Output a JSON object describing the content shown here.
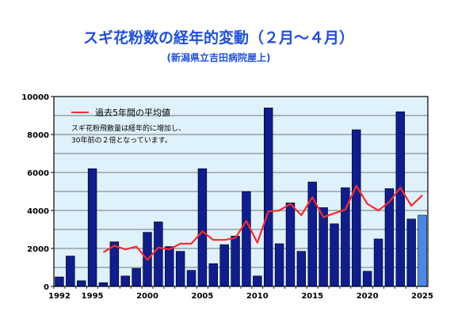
{
  "title": "スギ花粉数の経年的変動（２月～４月）",
  "subtitle": "(新潟県立吉田病院屋上)",
  "legend": {
    "line_label": "過去5年間の平均値"
  },
  "note_lines": [
    "スギ花粉飛散量は経年的に増加し、",
    "30年前の２倍となっています。"
  ],
  "colors": {
    "plot_bg": "#dff1fb",
    "bar": "#0f1d8f",
    "bar_latest": "#4a87e8",
    "line": "#ff2a2a",
    "grid": "#000000"
  },
  "chart_data": {
    "type": "bar",
    "xlim": [
      1992,
      2025
    ],
    "ylim": [
      0,
      10000
    ],
    "yticks": [
      0,
      2000,
      4000,
      6000,
      8000,
      10000
    ],
    "ytick_labels": [
      "0",
      "2000",
      "4000",
      "6000",
      "8000",
      "10000"
    ],
    "xtick_labels": [
      "1992",
      "1995",
      "2000",
      "2005",
      "2010",
      "2015",
      "2020",
      "2025"
    ],
    "xticks": [
      1992,
      1995,
      2000,
      2005,
      2010,
      2015,
      2020,
      2025
    ],
    "grid": true,
    "legend_position": "top-left",
    "x": [
      1992,
      1993,
      1994,
      1995,
      1996,
      1997,
      1998,
      1999,
      2000,
      2001,
      2002,
      2003,
      2004,
      2005,
      2006,
      2007,
      2008,
      2009,
      2010,
      2011,
      2012,
      2013,
      2014,
      2015,
      2016,
      2017,
      2018,
      2019,
      2020,
      2021,
      2022,
      2023,
      2024,
      2025
    ],
    "series": [
      {
        "type": "bar",
        "values": [
          500,
          1600,
          300,
          6200,
          200,
          2350,
          550,
          950,
          2850,
          3400,
          2100,
          1850,
          850,
          6200,
          1200,
          2200,
          2650,
          5000,
          550,
          9400,
          2250,
          4400,
          1850,
          5500,
          4150,
          3300,
          5200,
          8250,
          800,
          2500,
          5150,
          9200,
          3550,
          3750
        ]
      },
      {
        "name": "過去5年間の平均値",
        "type": "line",
        "x": [
          1996,
          1997,
          1998,
          1999,
          2000,
          2001,
          2002,
          2003,
          2004,
          2005,
          2006,
          2007,
          2008,
          2009,
          2010,
          2011,
          2012,
          2013,
          2014,
          2015,
          2016,
          2017,
          2018,
          2019,
          2020,
          2021,
          2022,
          2023,
          2024,
          2025
        ],
        "values": [
          1800,
          2150,
          1950,
          2100,
          1400,
          2050,
          1950,
          2250,
          2250,
          2900,
          2450,
          2450,
          2550,
          3450,
          2300,
          3950,
          4000,
          4350,
          3750,
          4700,
          3650,
          3850,
          4050,
          5300,
          4350,
          4000,
          4450,
          5200,
          4250,
          4800
        ]
      }
    ]
  }
}
